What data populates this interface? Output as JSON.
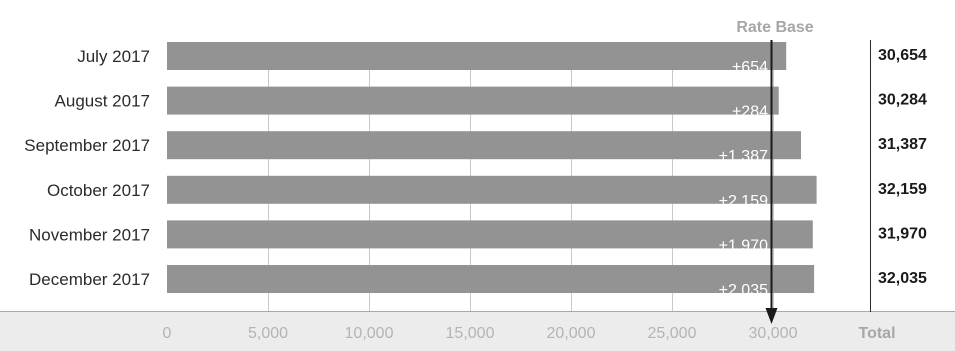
{
  "chart_data": {
    "type": "bar",
    "orientation": "horizontal",
    "categories": [
      "July 2017",
      "August 2017",
      "September 2017",
      "October 2017",
      "November 2017",
      "December 2017"
    ],
    "values": [
      30654,
      30284,
      31387,
      32159,
      31970,
      32035
    ],
    "bar_labels": [
      "+654",
      "+284",
      "+1,387",
      "+2,159",
      "+1,970",
      "+2,035"
    ],
    "totals": [
      "30,654",
      "30,284",
      "31,387",
      "32,159",
      "31,970",
      "32,035"
    ],
    "reference_line": {
      "label": "Rate Base",
      "value": 30000
    },
    "total_header": "Total",
    "xlim": [
      0,
      35000
    ],
    "xticks": [
      0,
      5000,
      10000,
      15000,
      20000,
      25000,
      30000
    ],
    "xtick_labels": [
      "0",
      "5,000",
      "10,000",
      "15,000",
      "20,000",
      "25,000",
      "30,000"
    ],
    "grid": true,
    "colors": {
      "bar": "#939393",
      "reference_line": "#1a1a1a",
      "grid": "#c9c9c9",
      "axis_band": "#ececec",
      "header_text": "#a7a7a7"
    }
  }
}
